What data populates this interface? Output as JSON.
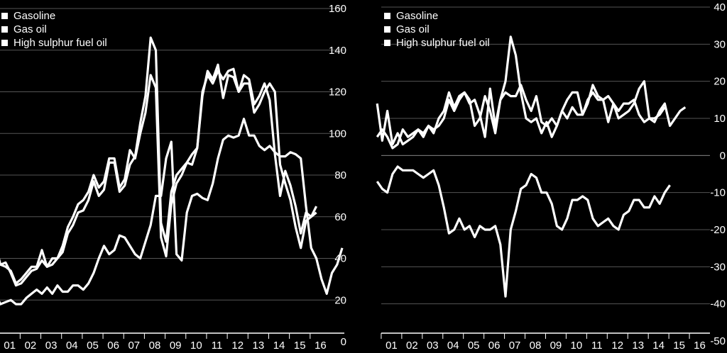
{
  "chart_data": [
    {
      "type": "line",
      "title": "",
      "xlabel": "",
      "ylabel": "",
      "ylim": [
        0,
        160
      ],
      "yticks": [
        20,
        40,
        60,
        80,
        100,
        120,
        140,
        160
      ],
      "ytick_zero": "0",
      "xtick_labels": [
        "01",
        "02",
        "03",
        "04",
        "05",
        "06",
        "07",
        "08",
        "09",
        "10",
        "11",
        "12",
        "13",
        "14",
        "15",
        "16"
      ],
      "legend": [
        "Gasoline",
        "Gas oil",
        "High sulphur fuel oil"
      ],
      "x_start": 2000.8,
      "x_step": 0.25,
      "series": [
        {
          "name": "Gasoline",
          "values": [
            41,
            37,
            38,
            33,
            27,
            28,
            31,
            34,
            35,
            39,
            36,
            37,
            40,
            43,
            52,
            56,
            62,
            63,
            68,
            77,
            70,
            73,
            86,
            86,
            72,
            75,
            85,
            89,
            105,
            118,
            146,
            140,
            57,
            48,
            72,
            80,
            83,
            86,
            85,
            93,
            118,
            130,
            126,
            133,
            117,
            128,
            127,
            120,
            124,
            124,
            110,
            114,
            120,
            124,
            120,
            85,
            76,
            68,
            55,
            45,
            58,
            60,
            65
          ]
        },
        {
          "name": "Gas oil",
          "values": [
            47,
            37,
            36,
            34,
            28,
            30,
            33,
            36,
            36,
            44,
            36,
            40,
            40,
            46,
            55,
            60,
            66,
            68,
            72,
            80,
            74,
            77,
            88,
            88,
            74,
            78,
            92,
            88,
            100,
            110,
            128,
            122,
            50,
            41,
            66,
            76,
            80,
            86,
            90,
            93,
            120,
            128,
            124,
            130,
            126,
            130,
            131,
            120,
            128,
            126,
            114,
            118,
            124,
            116,
            90,
            70,
            82,
            75,
            65,
            52,
            62,
            60,
            62
          ]
        },
        {
          "name": "High sulphur fuel oil",
          "values": [
            23,
            18,
            19,
            20,
            18,
            18,
            21,
            23,
            25,
            23,
            26,
            23,
            27,
            24,
            24,
            27,
            27,
            25,
            28,
            33,
            40,
            46,
            42,
            44,
            51,
            50,
            46,
            42,
            40,
            48,
            56,
            70,
            70,
            88,
            96,
            42,
            39,
            62,
            70,
            71,
            69,
            68,
            76,
            88,
            97,
            99,
            98,
            99,
            107,
            99,
            99,
            94,
            92,
            94,
            91,
            89,
            89,
            91,
            90,
            88,
            65,
            45,
            40,
            30,
            23,
            33,
            37,
            45
          ]
        }
      ]
    },
    {
      "type": "line",
      "title": "",
      "xlabel": "",
      "ylabel": "",
      "ylim": [
        -50,
        40
      ],
      "yticks": [
        40,
        30,
        20,
        10,
        0,
        -10,
        -20,
        -30,
        -40,
        -50
      ],
      "xtick_labels": [
        "01",
        "02",
        "03",
        "04",
        "05",
        "06",
        "07",
        "08",
        "09",
        "10",
        "11",
        "12",
        "13",
        "14",
        "15",
        "16"
      ],
      "legend": [
        "Gasoline",
        "Gas oil",
        "High sulphur fuel oil"
      ],
      "x_start": 2000.8,
      "x_step": 0.25,
      "series": [
        {
          "name": "Gasoline",
          "values": [
            14,
            4,
            12,
            3,
            6,
            3,
            4,
            5,
            7,
            5,
            8,
            7,
            8,
            10,
            15,
            12,
            15,
            17,
            14,
            15,
            11,
            5,
            18,
            8,
            15,
            20,
            32,
            27,
            17,
            10,
            9,
            10,
            6,
            9,
            5,
            8,
            12,
            15,
            17,
            17,
            11,
            15,
            17,
            15,
            15,
            16,
            14,
            12,
            14,
            14,
            15,
            11,
            9,
            10,
            10,
            11,
            13
          ]
        },
        {
          "name": "Gas oil",
          "values": [
            5,
            7,
            5,
            2,
            3,
            7,
            5,
            6,
            7,
            6,
            8,
            6,
            10,
            12,
            17,
            13,
            16,
            17,
            15,
            8,
            10,
            16,
            12,
            6,
            15,
            17,
            16,
            16,
            19,
            15,
            12,
            16,
            9,
            8,
            10,
            8,
            12,
            10,
            13,
            11,
            11,
            14,
            19,
            16,
            15,
            9,
            14,
            10,
            11,
            12,
            14,
            18,
            20,
            10,
            9,
            12,
            14,
            8,
            10,
            12,
            13
          ]
        },
        {
          "name": "High sulphur fuel oil",
          "values": [
            -7,
            -9,
            -10,
            -5,
            -3,
            -4,
            -4,
            -4,
            -5,
            -6,
            -5,
            -4,
            -8,
            -14,
            -21,
            -20,
            -17,
            -20,
            -19,
            -22,
            -19,
            -20,
            -20,
            -19,
            -24,
            -38,
            -20,
            -15,
            -9,
            -8,
            -5,
            -6,
            -10,
            -10,
            -13,
            -19,
            -20,
            -17,
            -12,
            -12,
            -11,
            -12,
            -17,
            -19,
            -18,
            -17,
            -19,
            -20,
            -16,
            -15,
            -12,
            -12,
            -14,
            -14,
            -11,
            -13,
            -10,
            -8
          ]
        }
      ]
    }
  ]
}
